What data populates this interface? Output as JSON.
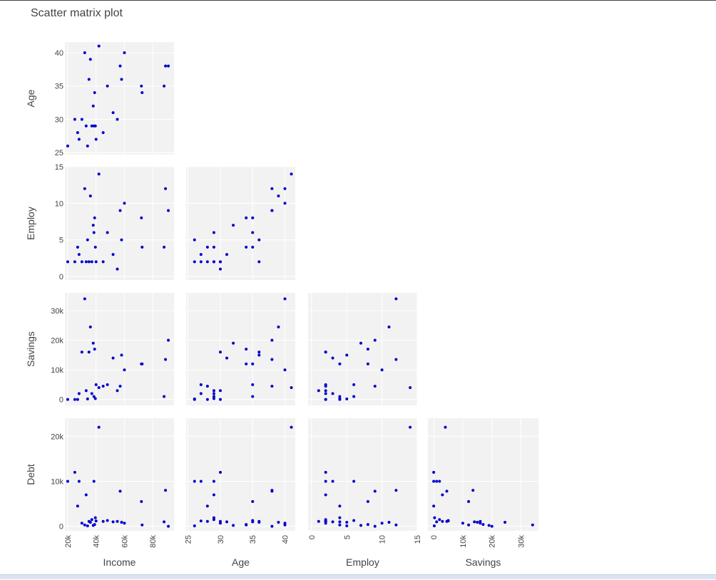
{
  "title": "Scatter matrix plot",
  "chart_data": {
    "type": "scatter",
    "title": "Scatter matrix plot",
    "layout": "lower-triangle scatter matrix",
    "marker_color": "#0000cc",
    "panel_background": "#f2f2f2",
    "grid": true,
    "variables": [
      "Income",
      "Age",
      "Employ",
      "Savings",
      "Debt"
    ],
    "row_variables": [
      "Age",
      "Employ",
      "Savings",
      "Debt"
    ],
    "column_variables": [
      "Income",
      "Age",
      "Employ",
      "Savings"
    ],
    "axes": {
      "Income": {
        "range": [
          18000,
          95000
        ],
        "ticks": [
          20000,
          40000,
          60000,
          80000
        ],
        "tick_labels": [
          "20k",
          "40k",
          "60k",
          "80k"
        ]
      },
      "Age": {
        "range": [
          24.7,
          41.6
        ],
        "ticks": [
          25,
          30,
          35,
          40
        ],
        "tick_labels": [
          "25",
          "30",
          "35",
          "40"
        ]
      },
      "Employ": {
        "range": [
          -0.5,
          15
        ],
        "ticks": [
          0,
          5,
          10,
          15
        ],
        "tick_labels": [
          "0",
          "5",
          "10",
          "15"
        ]
      },
      "Savings": {
        "range": [
          -2000,
          36000
        ],
        "ticks": [
          0,
          10000,
          20000,
          30000
        ],
        "tick_labels": [
          "0",
          "10k",
          "20k",
          "30k"
        ]
      },
      "Debt": {
        "range": [
          -1000,
          24000
        ],
        "ticks": [
          0,
          10000,
          20000
        ],
        "tick_labels": [
          "0",
          "10k",
          "20k"
        ]
      }
    },
    "observations": [
      {
        "Income": 20000,
        "Age": 26,
        "Employ": 2,
        "Savings": 0,
        "Debt": 10000
      },
      {
        "Income": 25000,
        "Age": 30,
        "Employ": 2,
        "Savings": 0,
        "Debt": 12000
      },
      {
        "Income": 27000,
        "Age": 28,
        "Employ": 4,
        "Savings": 0,
        "Debt": 4500
      },
      {
        "Income": 28000,
        "Age": 27,
        "Employ": 3,
        "Savings": 2000,
        "Debt": 10000
      },
      {
        "Income": 30000,
        "Age": 30,
        "Employ": 2,
        "Savings": 16000,
        "Debt": 700
      },
      {
        "Income": 32000,
        "Age": 40,
        "Employ": 12,
        "Savings": 34000,
        "Debt": 300
      },
      {
        "Income": 33000,
        "Age": 29,
        "Employ": 2,
        "Savings": 3000,
        "Debt": 7000
      },
      {
        "Income": 34000,
        "Age": 26,
        "Employ": 5,
        "Savings": 200,
        "Debt": 100
      },
      {
        "Income": 35000,
        "Age": 36,
        "Employ": 2,
        "Savings": 16000,
        "Debt": 1100
      },
      {
        "Income": 36000,
        "Age": 39,
        "Employ": 11,
        "Savings": 24500,
        "Debt": 900
      },
      {
        "Income": 37000,
        "Age": 29,
        "Employ": 2,
        "Savings": 2000,
        "Debt": 1500
      },
      {
        "Income": 38000,
        "Age": 32,
        "Employ": 7,
        "Savings": 19000,
        "Debt": 200
      },
      {
        "Income": 38500,
        "Age": 29,
        "Employ": 6,
        "Savings": 1000,
        "Debt": 10000
      },
      {
        "Income": 39000,
        "Age": 34,
        "Employ": 8,
        "Savings": 17000,
        "Debt": 400
      },
      {
        "Income": 39500,
        "Age": 29,
        "Employ": 4,
        "Savings": 300,
        "Debt": 1900
      },
      {
        "Income": 40000,
        "Age": 27,
        "Employ": 2,
        "Savings": 5000,
        "Debt": 1200
      },
      {
        "Income": 42000,
        "Age": 41,
        "Employ": 14,
        "Savings": 4000,
        "Debt": 22000
      },
      {
        "Income": 45000,
        "Age": 28,
        "Employ": 2,
        "Savings": 4500,
        "Debt": 1100
      },
      {
        "Income": 48000,
        "Age": 35,
        "Employ": 6,
        "Savings": 5000,
        "Debt": 1300
      },
      {
        "Income": 52000,
        "Age": 31,
        "Employ": 3,
        "Savings": 14000,
        "Debt": 1000
      },
      {
        "Income": 55000,
        "Age": 30,
        "Employ": 1,
        "Savings": 3000,
        "Debt": 1100
      },
      {
        "Income": 57000,
        "Age": 38,
        "Employ": 9,
        "Savings": 4500,
        "Debt": 7800
      },
      {
        "Income": 58000,
        "Age": 36,
        "Employ": 5,
        "Savings": 15000,
        "Debt": 900
      },
      {
        "Income": 60000,
        "Age": 40,
        "Employ": 10,
        "Savings": 10000,
        "Debt": 700
      },
      {
        "Income": 72000,
        "Age": 35,
        "Employ": 8,
        "Savings": 12000,
        "Debt": 5500
      },
      {
        "Income": 72500,
        "Age": 34,
        "Employ": 4,
        "Savings": 12000,
        "Debt": 300
      },
      {
        "Income": 88000,
        "Age": 35,
        "Employ": 4,
        "Savings": 1000,
        "Debt": 1000
      },
      {
        "Income": 89000,
        "Age": 38,
        "Employ": 12,
        "Savings": 13500,
        "Debt": 8000
      },
      {
        "Income": 91000,
        "Age": 38,
        "Employ": 9,
        "Savings": 20000,
        "Debt": 0
      }
    ]
  }
}
